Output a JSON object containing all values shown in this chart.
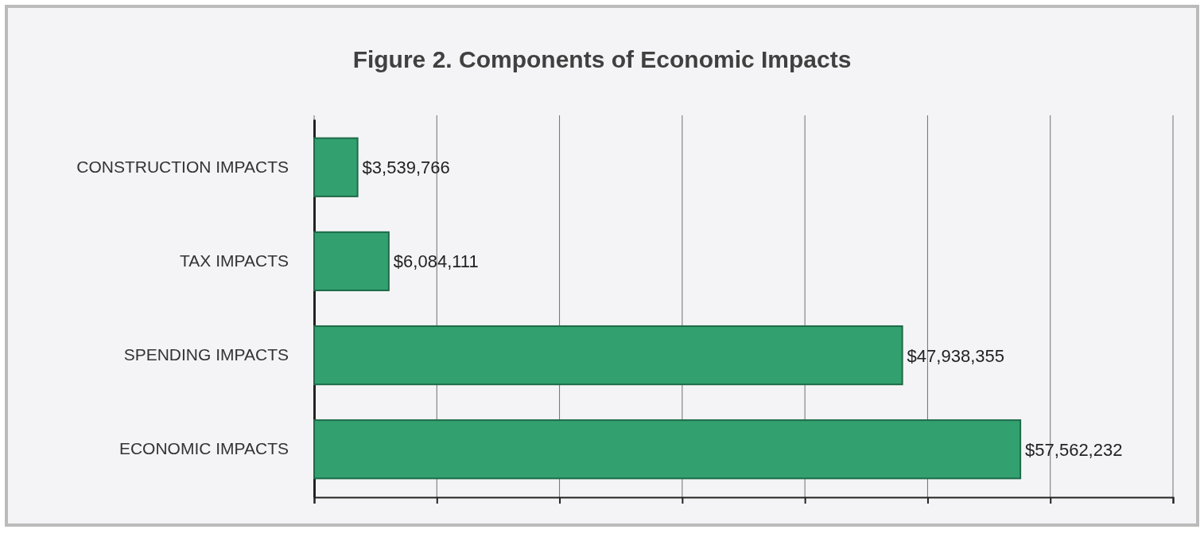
{
  "chart_data": {
    "type": "bar",
    "orientation": "horizontal",
    "title": "Figure 2. Components of Economic Impacts",
    "categories": [
      "CONSTRUCTION IMPACTS",
      "TAX IMPACTS",
      "SPENDING IMPACTS",
      "ECONOMIC IMPACTS"
    ],
    "values": [
      3539766,
      6084111,
      47938355,
      57562232
    ],
    "value_labels": [
      "$3,539,766",
      "$6,084,111",
      "$47,938,355",
      "$57,562,232"
    ],
    "color": "#33a070",
    "xlim": [
      0,
      70000000
    ],
    "xticks": [
      {
        "value": 0,
        "label": null
      },
      {
        "value": 10000000,
        "label": null
      },
      {
        "value": 20000000,
        "label": null
      },
      {
        "value": 30000000,
        "label": null
      },
      {
        "value": 40000000,
        "label": null
      },
      {
        "value": 50000000,
        "label": null
      },
      {
        "value": 60000000,
        "label": null
      },
      {
        "value": 70000000,
        "label": null
      }
    ],
    "grid": "x",
    "tick_labels": "y"
  }
}
